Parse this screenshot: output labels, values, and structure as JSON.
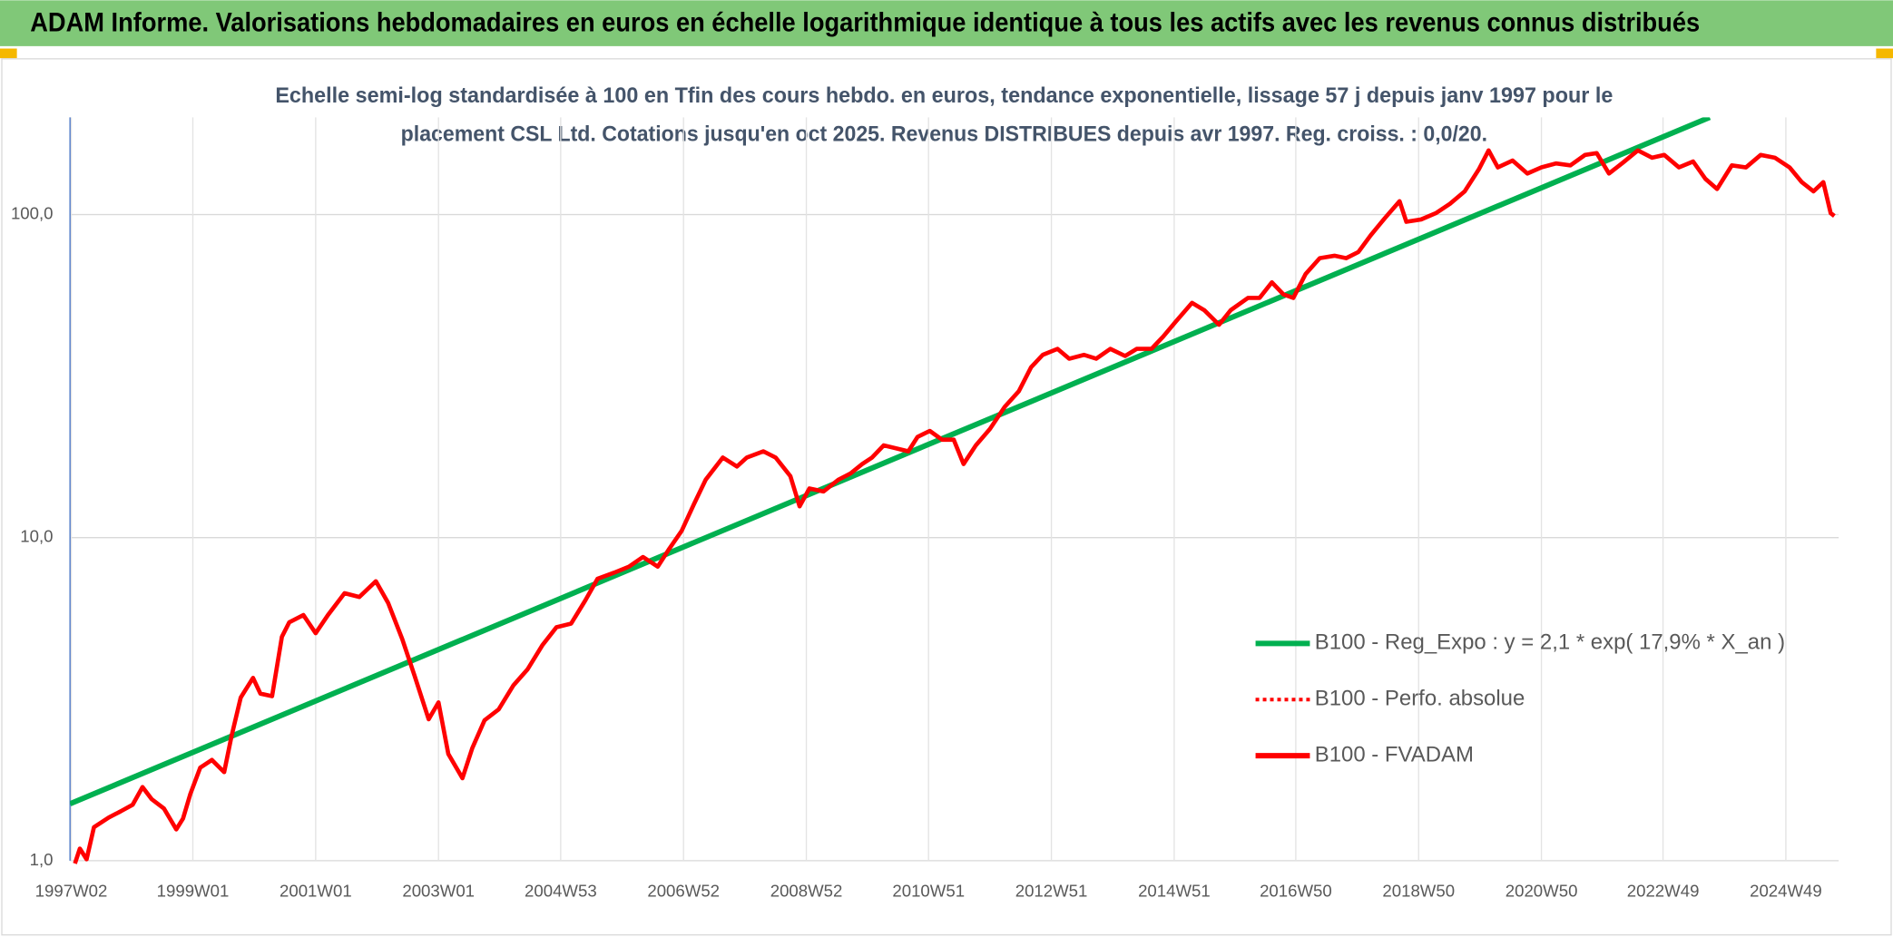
{
  "chart_data": {
    "type": "line",
    "title": "ADAM Informe. Valorisations hebdomadaires en euros en échelle logarithmique identique à tous les actifs avec les revenus connus distribués",
    "subtitle": [
      "Echelle semi-log standardisée à 100 en Tfin des cours hebdo. en euros, tendance exponentielle, lissage 57 j depuis janv 1997 pour le",
      "placement CSL Ltd. Cotations jusqu'en oct 2025. Revenus DISTRIBUES depuis avr 1997. Reg. croiss. : 0,0/20."
    ],
    "log_scale": true,
    "grid": true,
    "legend_position": "right",
    "xlim": [
      1997.0,
      2025.8
    ],
    "xticks": [
      {
        "value": 1997.02,
        "label": "1997W02"
      },
      {
        "value": 1999.0,
        "label": "1999W01"
      },
      {
        "value": 2001.0,
        "label": "2001W01"
      },
      {
        "value": 2003.0,
        "label": "2003W01"
      },
      {
        "value": 2004.99,
        "label": "2004W53"
      },
      {
        "value": 2006.99,
        "label": "2006W52"
      },
      {
        "value": 2008.99,
        "label": "2008W52"
      },
      {
        "value": 2010.98,
        "label": "2010W51"
      },
      {
        "value": 2012.98,
        "label": "2012W51"
      },
      {
        "value": 2014.98,
        "label": "2014W51"
      },
      {
        "value": 2016.96,
        "label": "2016W50"
      },
      {
        "value": 2018.96,
        "label": "2018W50"
      },
      {
        "value": 2020.96,
        "label": "2020W50"
      },
      {
        "value": 2022.94,
        "label": "2022W49"
      },
      {
        "value": 2024.94,
        "label": "2024W49"
      }
    ],
    "ylim": [
      1,
      200
    ],
    "yticks": [
      {
        "value": 1,
        "label": "1,0"
      },
      {
        "value": 10,
        "label": "10,0"
      },
      {
        "value": 100,
        "label": "100,0"
      }
    ],
    "series": [
      {
        "name": "B100 - Reg_Expo : y = 2,1 * exp( 17,9% *  X_an )",
        "color": "#00b050",
        "x": [
          1997.0,
          2023.7
        ],
        "values": [
          1.5,
          200
        ]
      },
      {
        "name": "B100 - Perfo. absolue",
        "color": "#ff0000",
        "dash": "dotted"
      },
      {
        "name": "B100 - FVADAM",
        "color": "#ff0000",
        "x": [
          1997.08,
          1997.16,
          1997.27,
          1997.39,
          1997.63,
          1997.82,
          1998.02,
          1998.18,
          1998.33,
          1998.53,
          1998.73,
          1998.84,
          1998.96,
          1999.12,
          1999.31,
          1999.51,
          1999.63,
          1999.78,
          1999.98,
          2000.1,
          2000.29,
          2000.45,
          2000.57,
          2000.8,
          2001.0,
          2001.2,
          2001.47,
          2001.71,
          2001.98,
          2002.18,
          2002.41,
          2002.61,
          2002.84,
          2003.0,
          2003.16,
          2003.39,
          2003.55,
          2003.75,
          2003.98,
          2004.22,
          2004.45,
          2004.69,
          2004.92,
          2005.16,
          2005.39,
          2005.59,
          2005.86,
          2006.1,
          2006.33,
          2006.57,
          2006.76,
          2006.96,
          2007.16,
          2007.35,
          2007.63,
          2007.86,
          2008.02,
          2008.29,
          2008.49,
          2008.73,
          2008.88,
          2009.04,
          2009.27,
          2009.51,
          2009.71,
          2009.9,
          2010.06,
          2010.25,
          2010.45,
          2010.65,
          2010.8,
          2011.0,
          2011.2,
          2011.39,
          2011.55,
          2011.75,
          2011.98,
          2012.22,
          2012.45,
          2012.65,
          2012.84,
          2013.08,
          2013.27,
          2013.51,
          2013.71,
          2013.94,
          2014.18,
          2014.37,
          2014.61,
          2014.8,
          2015.0,
          2015.27,
          2015.47,
          2015.71,
          2015.9,
          2016.18,
          2016.37,
          2016.57,
          2016.76,
          2016.92,
          2017.12,
          2017.35,
          2017.59,
          2017.78,
          2017.98,
          2018.18,
          2018.41,
          2018.65,
          2018.76,
          2019.0,
          2019.24,
          2019.47,
          2019.71,
          2019.94,
          2020.1,
          2020.25,
          2020.49,
          2020.73,
          2020.96,
          2021.2,
          2021.43,
          2021.67,
          2021.86,
          2022.06,
          2022.29,
          2022.53,
          2022.76,
          2022.96,
          2023.2,
          2023.43,
          2023.63,
          2023.82,
          2024.06,
          2024.29,
          2024.53,
          2024.76,
          2025.0,
          2025.2,
          2025.39,
          2025.55,
          2025.67,
          2025.73
        ],
        "values": [
          0.98,
          1.09,
          1.01,
          1.27,
          1.36,
          1.42,
          1.49,
          1.69,
          1.55,
          1.45,
          1.25,
          1.35,
          1.61,
          1.94,
          2.05,
          1.88,
          2.43,
          3.2,
          3.68,
          3.29,
          3.23,
          4.93,
          5.47,
          5.76,
          5.06,
          5.76,
          6.73,
          6.55,
          7.33,
          6.28,
          4.85,
          3.74,
          2.74,
          3.09,
          2.14,
          1.8,
          2.23,
          2.72,
          2.94,
          3.49,
          3.91,
          4.64,
          5.28,
          5.42,
          6.39,
          7.46,
          7.79,
          8.13,
          8.71,
          8.13,
          9.25,
          10.5,
          12.7,
          15.1,
          17.7,
          16.6,
          17.7,
          18.5,
          17.7,
          15.5,
          12.5,
          14.2,
          13.9,
          15.1,
          15.8,
          16.9,
          17.7,
          19.3,
          18.9,
          18.5,
          20.5,
          21.4,
          20.1,
          20.1,
          16.9,
          19.3,
          21.7,
          25.4,
          28.4,
          33.7,
          36.8,
          38.4,
          35.8,
          36.8,
          35.8,
          38.4,
          36.5,
          38.4,
          38.4,
          41.9,
          46.5,
          53.3,
          50.6,
          45.6,
          50.6,
          55.2,
          55.2,
          61.7,
          56.6,
          55.2,
          65.5,
          73.3,
          74.6,
          73.3,
          76.6,
          86.3,
          97.5,
          110,
          95,
          96.6,
          101,
          108,
          118,
          138,
          158,
          140,
          147,
          134,
          140,
          144,
          142,
          153,
          155,
          134,
          145,
          158,
          150,
          153,
          140,
          146,
          129,
          120,
          142,
          140,
          153,
          150,
          140,
          126,
          118,
          126,
          101,
          99
        ]
      }
    ]
  }
}
